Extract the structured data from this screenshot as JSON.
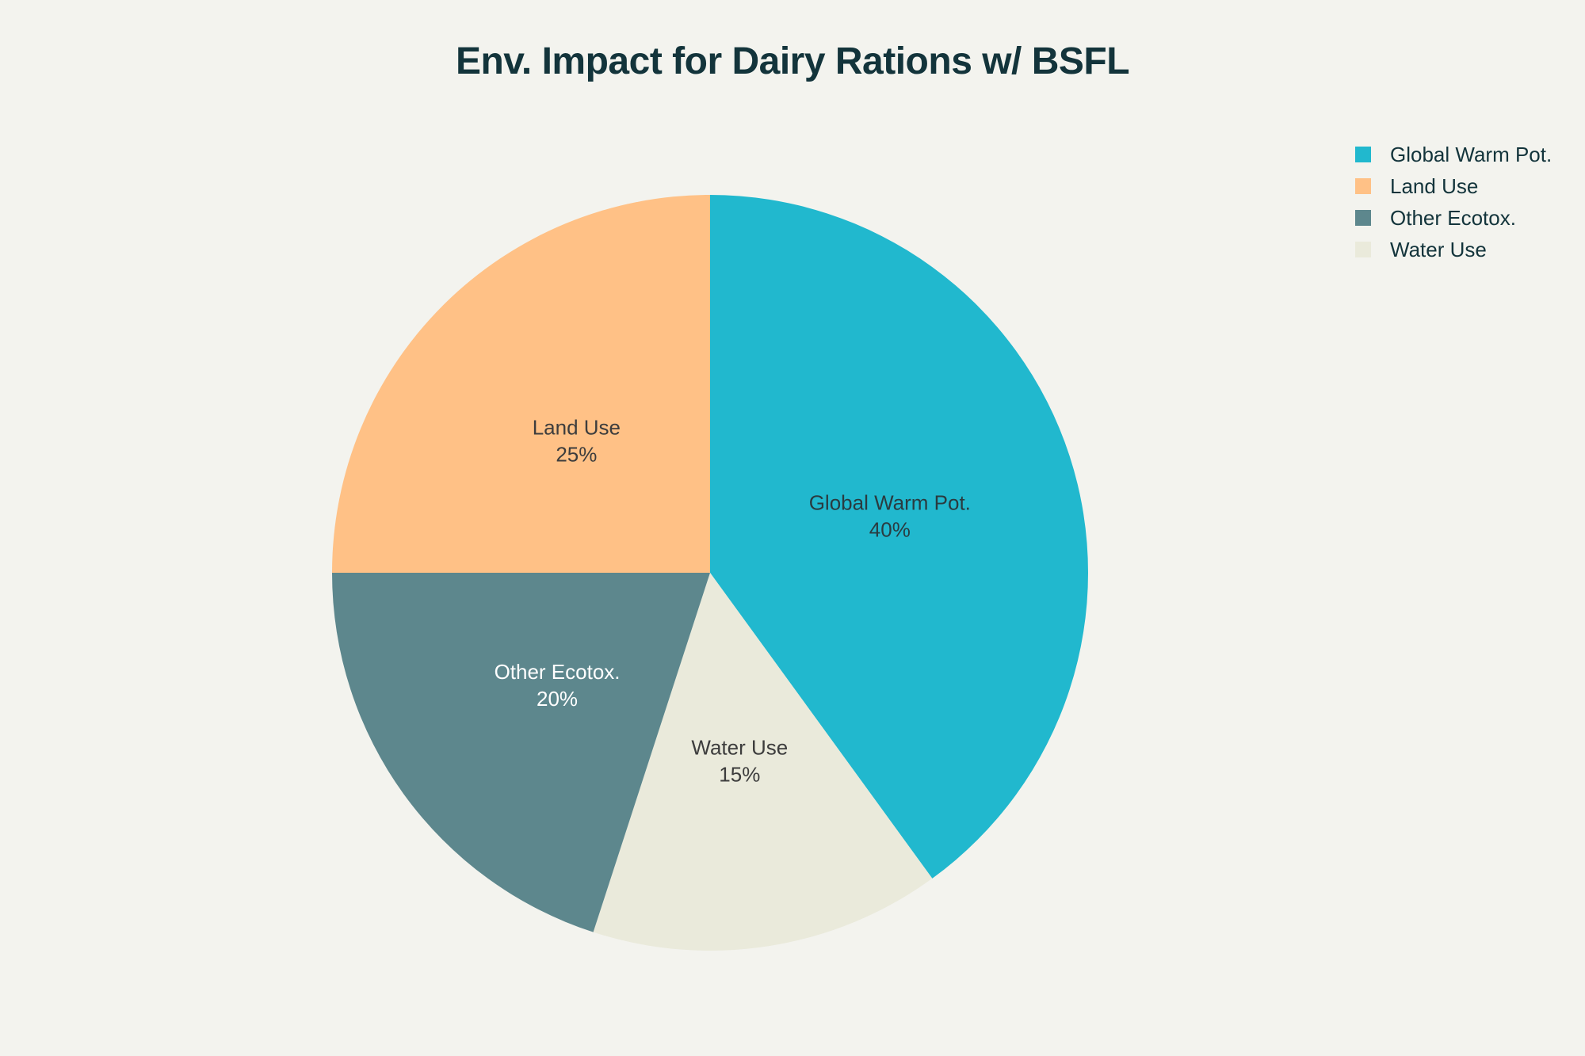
{
  "chart_data": {
    "type": "pie",
    "title": "Env. Impact for Dairy Rations w/ BSFL",
    "slices": [
      {
        "label": "Global Warm Pot.",
        "value": 40,
        "percent_text": "40%",
        "color": "#21b8ce",
        "text_color": "#2a3b40"
      },
      {
        "label": "Water Use",
        "value": 15,
        "percent_text": "15%",
        "color": "#eaeadb",
        "text_color": "#3d3d3d"
      },
      {
        "label": "Other Ecotox.",
        "value": 20,
        "percent_text": "20%",
        "color": "#5d878d",
        "text_color": "#ffffff"
      },
      {
        "label": "Land Use",
        "value": 25,
        "percent_text": "25%",
        "color": "#ffc186",
        "text_color": "#3d3d3d"
      }
    ],
    "legend": {
      "placement": "top-right",
      "entries": [
        "Global Warm Pot.",
        "Land Use",
        "Other Ecotox.",
        "Water Use"
      ]
    },
    "direction": "clockwise",
    "start": "top"
  }
}
